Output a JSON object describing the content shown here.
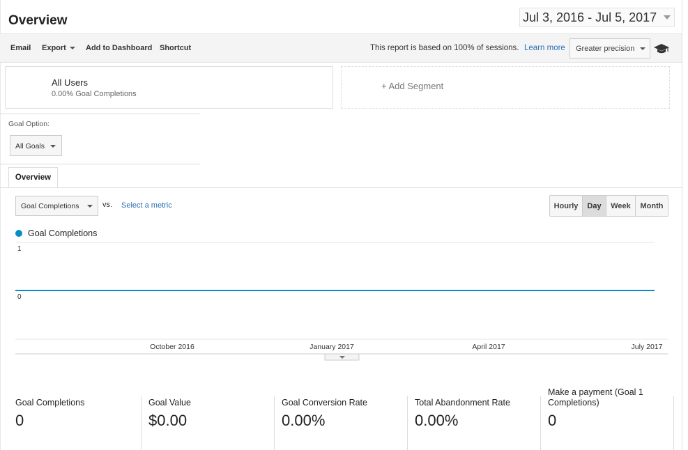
{
  "header": {
    "title": "Overview",
    "date_range": "Jul 3, 2016 - Jul 5, 2017"
  },
  "toolbar": {
    "email": "Email",
    "export": "Export",
    "add_to_dashboard": "Add to Dashboard",
    "shortcut": "Shortcut",
    "sampling_note": "This report is based on 100% of sessions.",
    "learn_more": "Learn more",
    "precision": "Greater precision",
    "help_icon": "graduation-cap-icon"
  },
  "segments": {
    "all_users": {
      "name": "All Users",
      "subtitle": "0.00% Goal Completions"
    },
    "add_segment": "+ Add Segment"
  },
  "goal_option": {
    "label": "Goal Option:",
    "selected": "All Goals"
  },
  "tabs": [
    {
      "label": "Overview",
      "active": true
    }
  ],
  "metric_selector": {
    "selected": "Goal Completions",
    "vs": "vs.",
    "select_metric": "Select a metric"
  },
  "granularity": {
    "options": [
      "Hourly",
      "Day",
      "Week",
      "Month"
    ],
    "active": "Day"
  },
  "chart_data": {
    "type": "line",
    "series": [
      {
        "name": "Goal Completions",
        "color": "#058dc7",
        "values": [
          0,
          0
        ]
      }
    ],
    "x": [
      "Jul 3, 2016",
      "Jul 5, 2017"
    ],
    "ylim": [
      0,
      1
    ],
    "yticks": [
      "1",
      "0"
    ],
    "xticks": [
      "October 2016",
      "January 2017",
      "April 2017",
      "July 2017"
    ],
    "grid": true,
    "legend": "top-left"
  },
  "scorecards": [
    {
      "label": "Goal Completions",
      "value": "0"
    },
    {
      "label": "Goal Value",
      "value": "$0.00"
    },
    {
      "label": "Goal Conversion Rate",
      "value": "0.00%"
    },
    {
      "label": "Total Abandonment Rate",
      "value": "0.00%"
    },
    {
      "label": "Make a payment (Goal 1 Completions)",
      "value": "0"
    }
  ]
}
